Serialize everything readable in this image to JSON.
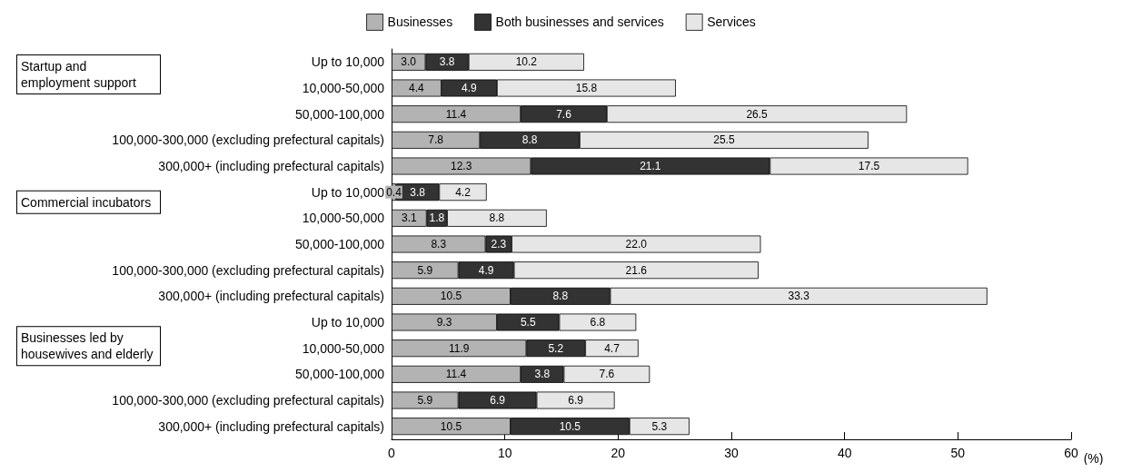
{
  "chart_data": {
    "type": "bar",
    "orientation": "horizontal",
    "stacked": true,
    "legend": "top",
    "grid": false,
    "xlabel": "(%)",
    "xlim": [
      0,
      60
    ],
    "xticks": [
      0,
      10,
      20,
      30,
      40,
      50,
      60
    ],
    "annotations": [
      "Startup and employment support",
      "Commercial incubators",
      "Businesses led by housewives and elderly"
    ],
    "categories": [
      "Up to 10,000",
      "10,000-50,000",
      "50,000-100,000",
      "100,000-300,000 (excluding prefectural capitals)",
      "300,000+ (including prefectural capitals)",
      "Up to 10,000",
      "10,000-50,000",
      "50,000-100,000",
      "100,000-300,000 (excluding prefectural capitals)",
      "300,000+ (including prefectural capitals)",
      "Up to 10,000",
      "10,000-50,000",
      "50,000-100,000",
      "100,000-300,000 (excluding prefectural capitals)",
      "300,000+ (including prefectural capitals)"
    ],
    "series": [
      {
        "name": "Businesses",
        "color": "#b3b3b3",
        "values": [
          3.0,
          4.4,
          11.4,
          7.8,
          12.3,
          0.4,
          3.1,
          8.3,
          5.9,
          10.5,
          9.3,
          11.9,
          11.4,
          5.9,
          10.5
        ],
        "value_labels": [
          "3.0",
          "4.4",
          "11.4",
          "7.8",
          "12.3",
          "0.4",
          "3.1",
          "8.3",
          "5.9",
          "10.5",
          "9.3",
          "11.9",
          "11.4",
          "5.9",
          "10.5"
        ]
      },
      {
        "name": "Both businesses and services",
        "color": "#333333",
        "values": [
          3.8,
          4.9,
          7.6,
          8.8,
          21.1,
          3.8,
          1.8,
          2.3,
          4.9,
          8.8,
          5.5,
          5.2,
          3.8,
          6.9,
          10.5
        ],
        "value_labels": [
          "3.8",
          "4.9",
          "7.6",
          "8.8",
          "21.1",
          "3.8",
          "1.8",
          "2.3",
          "4.9",
          "8.8",
          "5.5",
          "5.2",
          "3.8",
          "6.9",
          "10.5"
        ]
      },
      {
        "name": "Services",
        "color": "#e6e6e6",
        "values": [
          10.2,
          15.8,
          26.5,
          25.5,
          17.5,
          4.2,
          8.8,
          22.0,
          21.6,
          33.3,
          6.8,
          4.7,
          7.6,
          6.9,
          5.3
        ],
        "value_labels": [
          "10.2",
          "15.8",
          "26.5",
          "25.5",
          "17.5",
          "4.2",
          "8.8",
          "22.0",
          "21.6",
          "33.3",
          "6.8",
          "4.7",
          "7.6",
          "6.9",
          "5.3"
        ]
      }
    ]
  }
}
